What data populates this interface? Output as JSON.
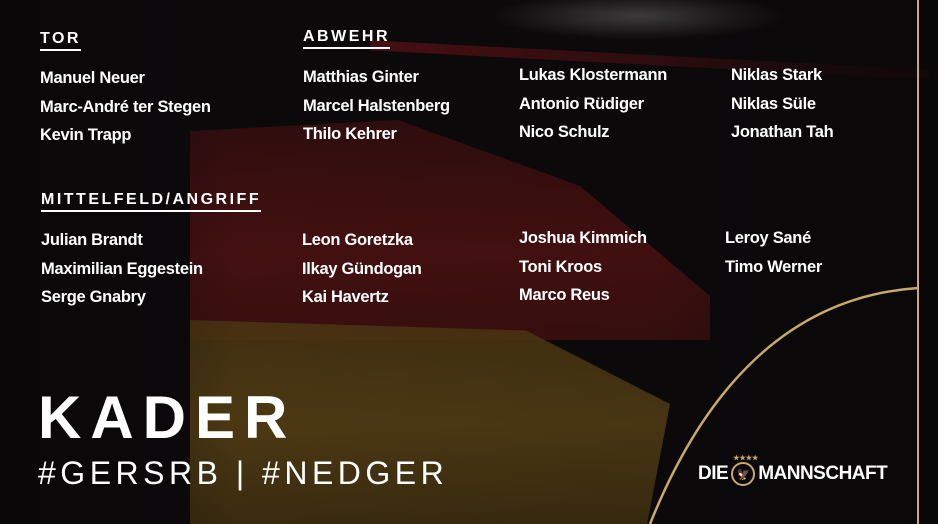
{
  "sections": {
    "tor": {
      "heading": "TOR",
      "players": [
        "Manuel Neuer",
        "Marc-André ter Stegen",
        "Kevin Trapp"
      ]
    },
    "abwehr": {
      "heading": "ABWEHR",
      "columns": [
        [
          "Matthias Ginter",
          "Marcel Halstenberg",
          "Thilo Kehrer"
        ],
        [
          "Lukas Klostermann",
          "Antonio Rüdiger",
          "Nico Schulz"
        ],
        [
          "Niklas Stark",
          "Niklas Süle",
          "Jonathan Tah"
        ]
      ]
    },
    "mittelfeld": {
      "heading": "MITTELFELD/ANGRIFF",
      "columns": [
        [
          "Julian Brandt",
          "Maximilian Eggestein",
          "Serge Gnabry"
        ],
        [
          "Leon Goretzka",
          "Ilkay Gündogan",
          "Kai Havertz"
        ],
        [
          "Joshua Kimmich",
          "Toni Kroos",
          "Marco Reus"
        ],
        [
          "Leroy Sané",
          "Timo Werner"
        ]
      ]
    }
  },
  "title": "KADER",
  "hashtags": "#GERSRB | #NEDGER",
  "logo": {
    "left": "DIE",
    "right": "MANNSCHAFT",
    "stars": "★★★★"
  },
  "colors": {
    "accent_gold": "#c9a86a",
    "background": "#0c0a0b"
  }
}
